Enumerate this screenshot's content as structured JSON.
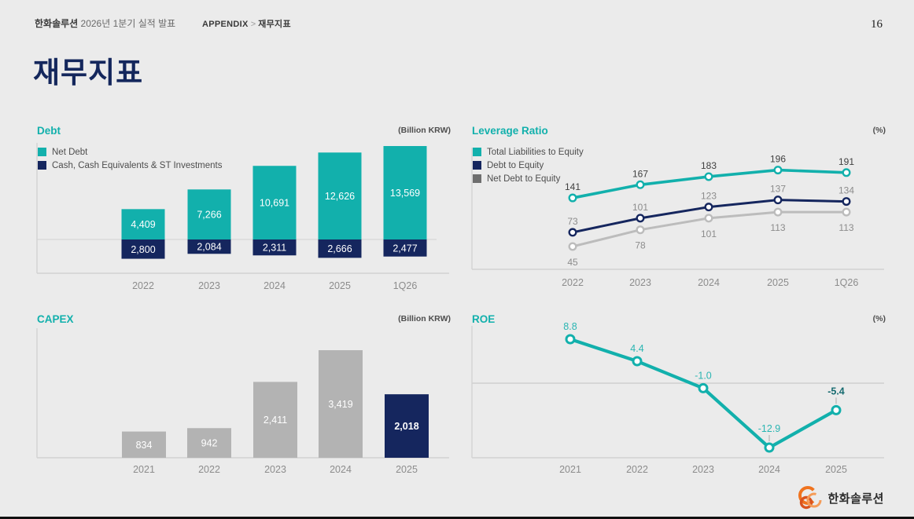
{
  "page": {
    "number": "16",
    "background": "#ebebeb"
  },
  "header": {
    "brand": "한화솔루션",
    "subtitle": " 2026년 1분기 실적 발표",
    "breadcrumb": {
      "section": "APPENDIX",
      "separator": " > ",
      "page": "재무지표"
    }
  },
  "title": "재무지표",
  "footer": {
    "logo_text": "한화솔루션",
    "logo_icon": "hanwha-tricircle",
    "logo_color": "#f37321"
  },
  "colors": {
    "accent_teal": "#12b0ac",
    "navy": "#15265e",
    "bar_gray": "#b3b3b3",
    "line_gray": "#bcbcbc",
    "legend_gray": "#6e6e6e",
    "title_navy": "#14275c",
    "label_dark": "#404040",
    "label_gray": "#8c8c8c",
    "axis_gray": "#d2d2d2",
    "value_white": "#ffffff",
    "roe_label_teal": "#2ab5b2",
    "roe_label_dark": "#176b70"
  },
  "chart_data": [
    {
      "id": "debt",
      "type": "bar",
      "title": "Debt",
      "unit": "(Billion KRW)",
      "categories": [
        "2022",
        "2023",
        "2024",
        "2025",
        "1Q26"
      ],
      "legend_position": "top-left",
      "grid": false,
      "series": [
        {
          "name": "Net Debt",
          "color": "#12b0ac",
          "values": [
            4409,
            7266,
            10691,
            12626,
            13569
          ],
          "labels": [
            "4,409",
            "7,266",
            "10,691",
            "12,626",
            "13,569"
          ]
        },
        {
          "name": "Cash, Cash Equivalents & ST Investments",
          "color": "#15265e",
          "values": [
            2800,
            2084,
            2311,
            2666,
            2477
          ],
          "labels": [
            "2,800",
            "2,084",
            "2,311",
            "2,666",
            "2,477"
          ]
        }
      ],
      "layout_hint": "Net Debt bars rise above zero baseline; Cash bars hang below it"
    },
    {
      "id": "leverage",
      "type": "line",
      "title": "Leverage Ratio",
      "unit": "(%)",
      "categories": [
        "2022",
        "2023",
        "2024",
        "2025",
        "1Q26"
      ],
      "legend_position": "top-left",
      "grid": false,
      "ylim": [
        0,
        230
      ],
      "series": [
        {
          "name": "Total Liabilities to Equity",
          "color": "#12b0ac",
          "legend_color": "#12b0ac",
          "values": [
            141,
            167,
            183,
            196,
            191
          ],
          "labels": [
            "141",
            "167",
            "183",
            "196",
            "191"
          ],
          "label_color": "#404040",
          "label_side": "above"
        },
        {
          "name": "Debt to Equity",
          "color": "#15265e",
          "legend_color": "#15265e",
          "values": [
            73,
            101,
            123,
            137,
            134
          ],
          "labels": [
            "73",
            "101",
            "123",
            "137",
            "134"
          ],
          "label_color": "#8c8c8c",
          "label_side": "above"
        },
        {
          "name": "Net Debt to Equity",
          "color": "#bcbcbc",
          "legend_color": "#6e6e6e",
          "values": [
            45,
            78,
            101,
            113,
            113
          ],
          "labels": [
            "45",
            "78",
            "101",
            "113",
            "113"
          ],
          "label_color": "#8c8c8c",
          "label_side": "below"
        }
      ]
    },
    {
      "id": "capex",
      "type": "bar",
      "title": "CAPEX",
      "unit": "(Billion KRW)",
      "categories": [
        "2021",
        "2022",
        "2023",
        "2024",
        "2025"
      ],
      "grid": false,
      "values": [
        834,
        942,
        2411,
        3419,
        2018
      ],
      "labels": [
        "834",
        "942",
        "2,411",
        "3,419",
        "2,018"
      ],
      "bar_color": "#b3b3b3",
      "highlight_index": 4,
      "highlight_color": "#15265e",
      "layout_hint": "latest year bar highlighted in navy, value labels white inside bars"
    },
    {
      "id": "roe",
      "type": "line",
      "title": "ROE",
      "unit": "(%)",
      "categories": [
        "2021",
        "2022",
        "2023",
        "2024",
        "2025"
      ],
      "grid": false,
      "zero_line": true,
      "series": [
        {
          "name": "ROE",
          "color": "#12b0ac",
          "values": [
            8.8,
            4.4,
            -1.0,
            -12.9,
            -5.4
          ],
          "labels": [
            "8.8",
            "4.4",
            "-1.0",
            "-12.9",
            "-5.4"
          ],
          "leader_line_indices": [
            3,
            4
          ],
          "highlight_label_index": 4
        }
      ]
    }
  ]
}
